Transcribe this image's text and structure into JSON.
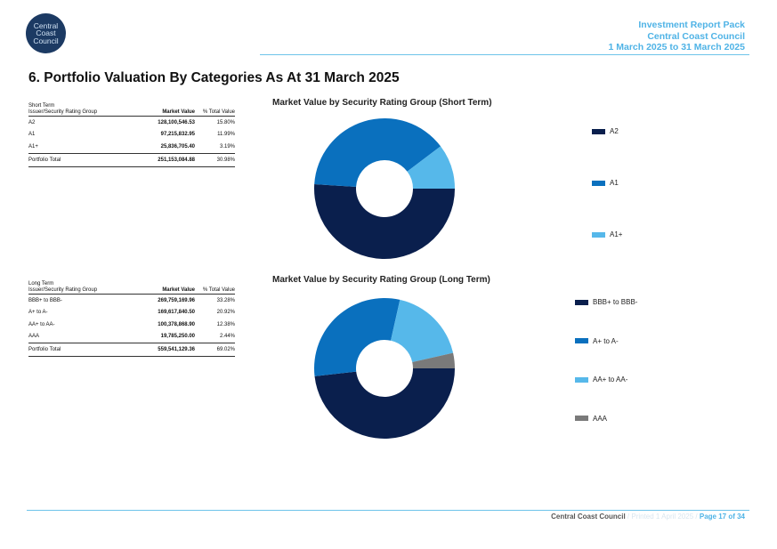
{
  "logo": {
    "lines": [
      "Central",
      "Coast",
      "Council"
    ]
  },
  "header": {
    "line1": "Investment Report Pack",
    "line2": "Central Coast Council",
    "line3": "1 March 2025 to 31 March 2025"
  },
  "page_title": "6. Portfolio Valuation By Categories As At 31 March 2025",
  "short_term_table": {
    "caption": "Short Term",
    "col1": "Issuer/Security Rating Group",
    "col2": "Market Value",
    "col3": "% Total Value",
    "rows": [
      {
        "group": "A2",
        "value": "128,100,546.53",
        "pct": "15.80%"
      },
      {
        "group": "A1",
        "value": "97,215,832.95",
        "pct": "11.99%"
      },
      {
        "group": "A1+",
        "value": "25,836,705.40",
        "pct": "3.19%"
      }
    ],
    "total": {
      "label": "Portfolio Total",
      "value": "251,153,084.88",
      "pct": "30.98%"
    }
  },
  "long_term_table": {
    "caption": "Long Term",
    "col1": "Issuer/Security Rating Group",
    "col2": "Market Value",
    "col3": "% Total Value",
    "rows": [
      {
        "group": "BBB+ to BBB-",
        "value": "269,759,169.96",
        "pct": "33.28%"
      },
      {
        "group": "A+ to A-",
        "value": "169,617,840.50",
        "pct": "20.92%"
      },
      {
        "group": "AA+ to AA-",
        "value": "100,378,868.90",
        "pct": "12.38%"
      },
      {
        "group": "AAA",
        "value": "19,785,250.00",
        "pct": "2.44%"
      }
    ],
    "total": {
      "label": "Portfolio Total",
      "value": "559,541,129.36",
      "pct": "69.02%"
    }
  },
  "chart_data": [
    {
      "type": "pie",
      "title": "Market Value by Security Rating Group (Short Term)",
      "categories": [
        "A2",
        "A1",
        "A1+"
      ],
      "values": [
        128100546.53,
        97215832.95,
        25836705.4
      ],
      "colors": [
        "#0a1f4d",
        "#0a70be",
        "#56b8ea"
      ],
      "legend": "right"
    },
    {
      "type": "pie",
      "title": "Market Value by Security Rating Group (Long Term)",
      "categories": [
        "BBB+ to BBB-",
        "A+ to A-",
        "AA+ to AA-",
        "AAA"
      ],
      "values": [
        269759169.96,
        169617840.5,
        100378868.9,
        19785250.0
      ],
      "colors": [
        "#0a1f4d",
        "#0a70be",
        "#56b8ea",
        "#7a7a7a"
      ],
      "legend": "right"
    }
  ],
  "footer": {
    "org": "Central Coast Council",
    "printed": "/ Printed 1 April 2025 /",
    "page": "Page 17 of 34"
  }
}
